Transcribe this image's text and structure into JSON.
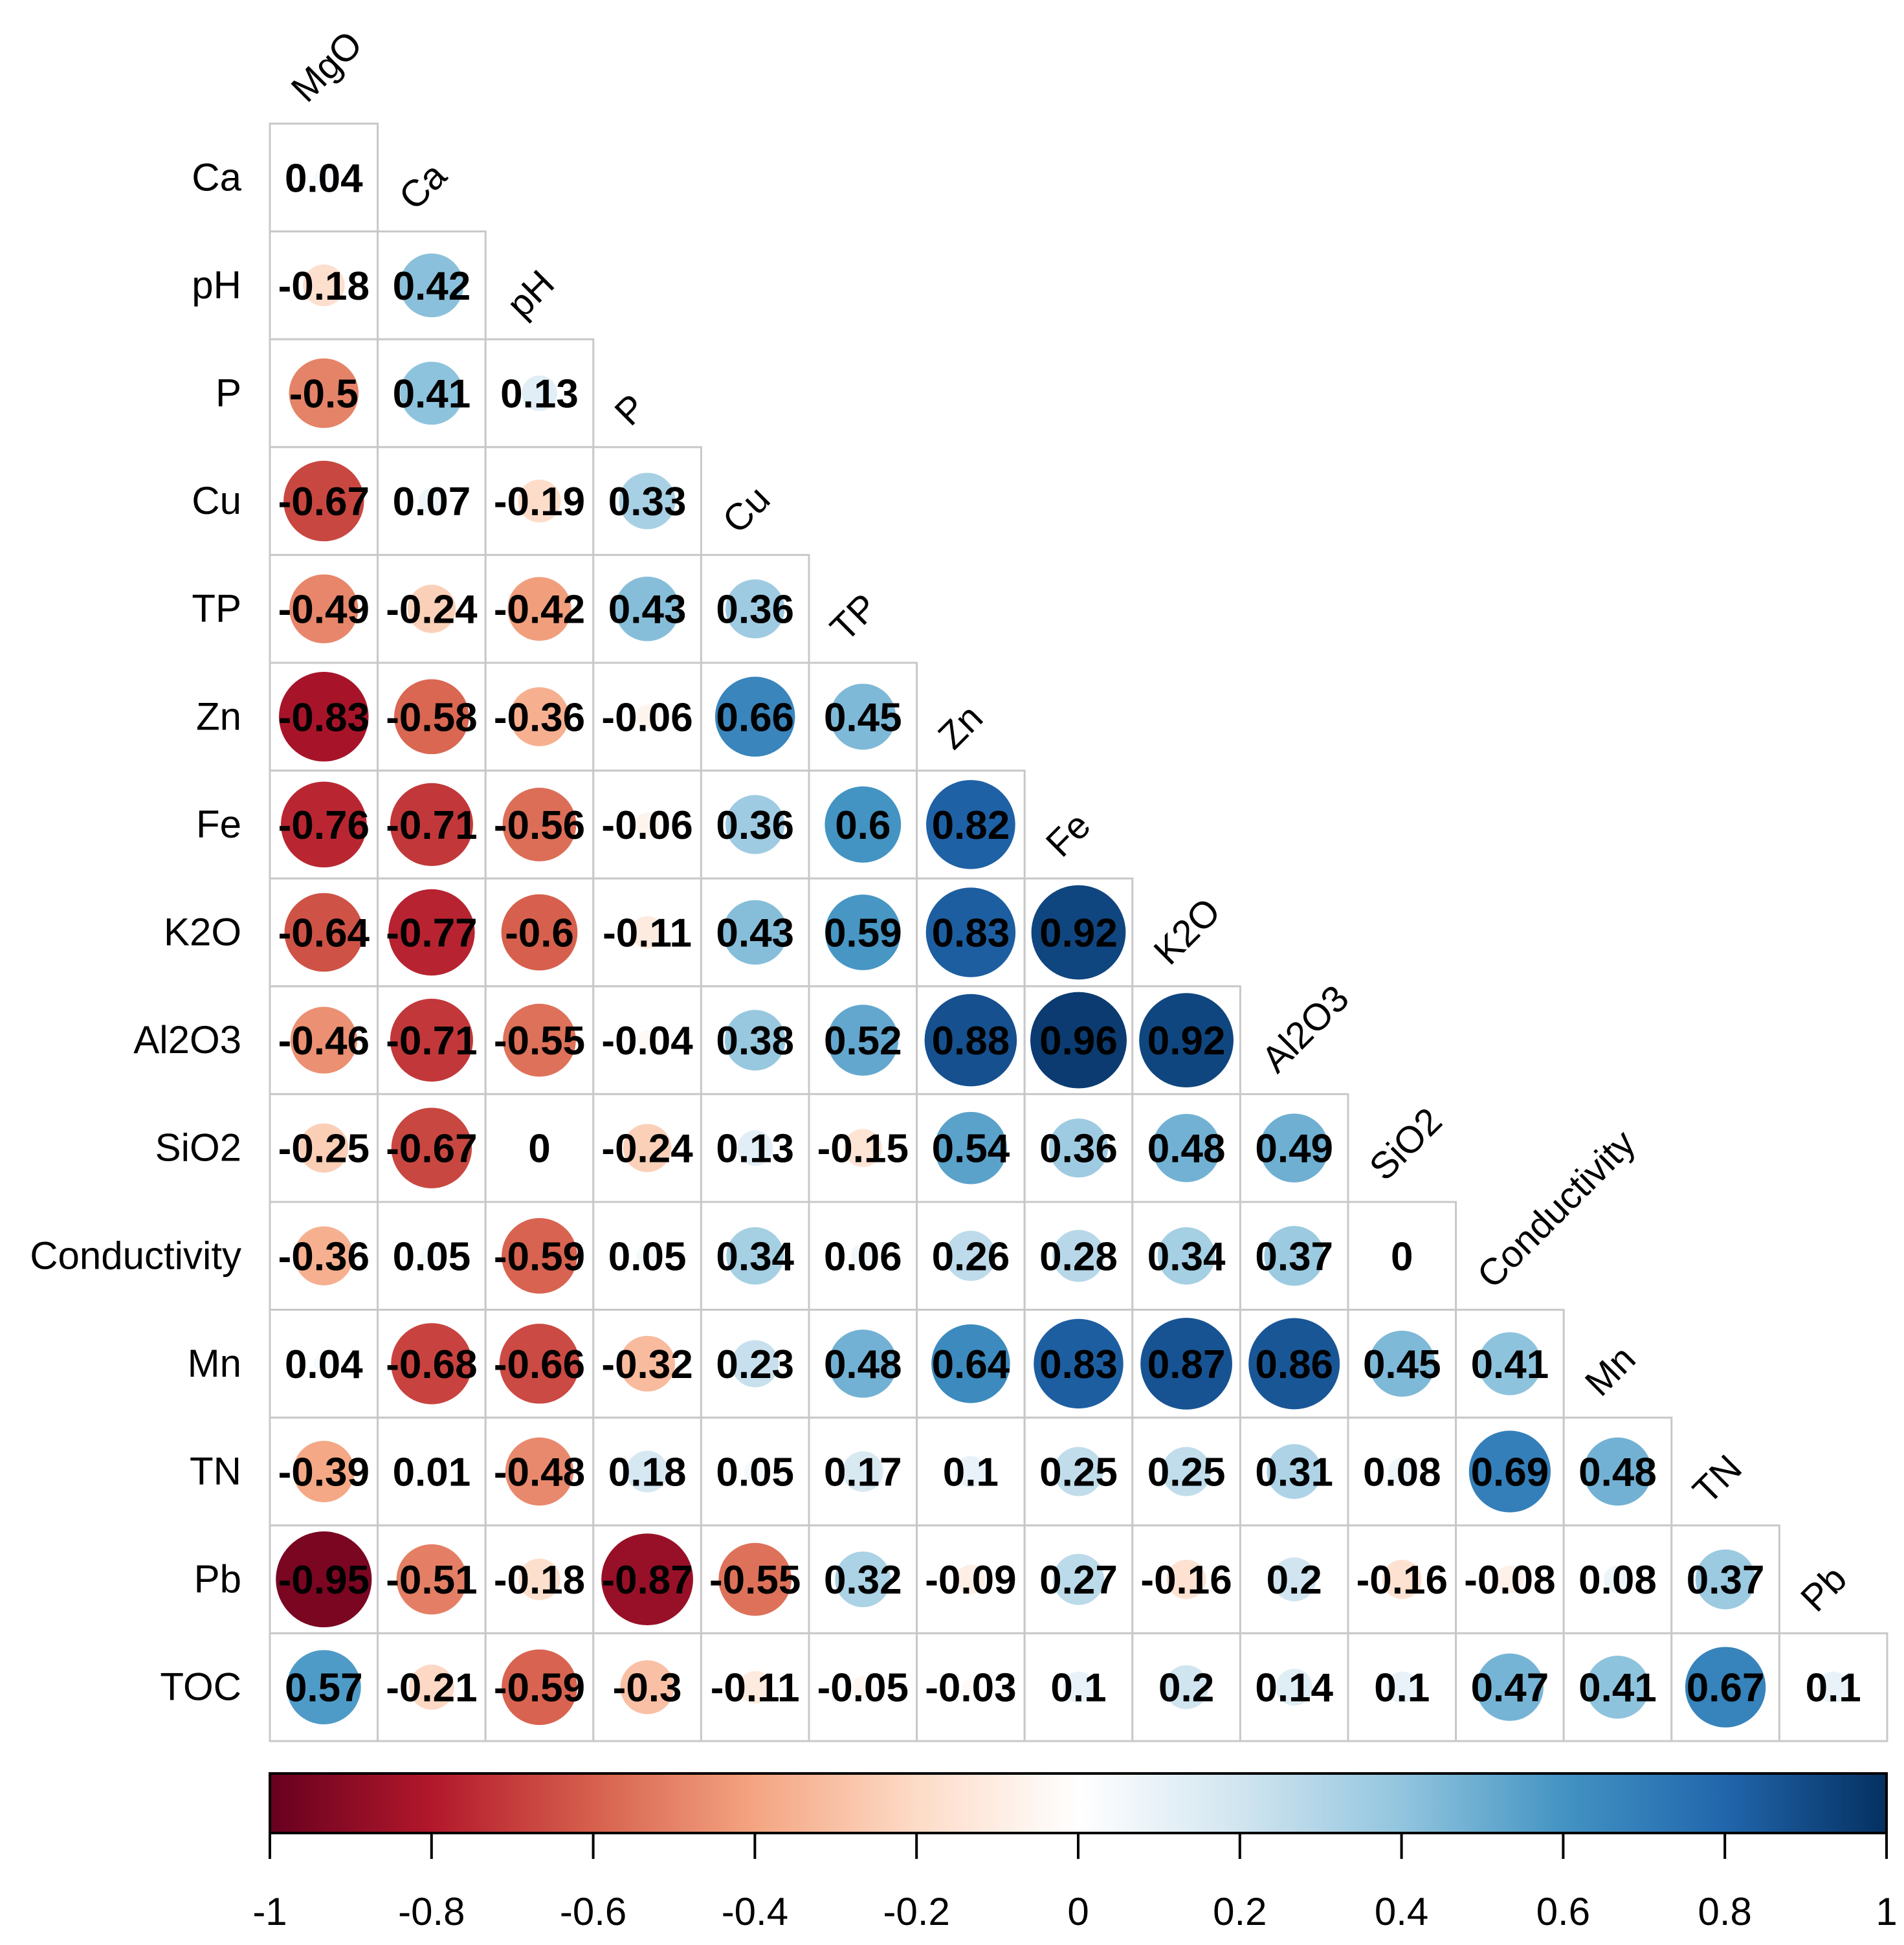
{
  "chart_data": {
    "type": "heatmap",
    "subtype": "correlation-matrix-lower-triangle",
    "mark": "circle",
    "variables": [
      "MgO",
      "Ca",
      "pH",
      "P",
      "Cu",
      "TP",
      "Zn",
      "Fe",
      "K2O",
      "Al2O3",
      "SiO2",
      "Conductivity",
      "Mn",
      "TN",
      "Pb",
      "TOC"
    ],
    "column_labels": [
      "MgO",
      "Ca",
      "pH",
      "P",
      "Cu",
      "TP",
      "Zn",
      "Fe",
      "K2O",
      "Al2O3",
      "SiO2",
      "Conductivity",
      "Mn",
      "TN",
      "Pb"
    ],
    "row_labels": [
      "Ca",
      "pH",
      "P",
      "Cu",
      "TP",
      "Zn",
      "Fe",
      "K2O",
      "Al2O3",
      "SiO2",
      "Conductivity",
      "Mn",
      "TN",
      "Pb",
      "TOC"
    ],
    "rows": [
      {
        "label": "Ca",
        "values": [
          "0.04"
        ]
      },
      {
        "label": "pH",
        "values": [
          "-0.18",
          "0.42"
        ]
      },
      {
        "label": "P",
        "values": [
          "-0.5",
          "0.41",
          "0.13"
        ]
      },
      {
        "label": "Cu",
        "values": [
          "-0.67",
          "0.07",
          "-0.19",
          "0.33"
        ]
      },
      {
        "label": "TP",
        "values": [
          "-0.49",
          "-0.24",
          "-0.42",
          "0.43",
          "0.36"
        ]
      },
      {
        "label": "Zn",
        "values": [
          "-0.83",
          "-0.58",
          "-0.36",
          "-0.06",
          "0.66",
          "0.45"
        ]
      },
      {
        "label": "Fe",
        "values": [
          "-0.76",
          "-0.71",
          "-0.56",
          "-0.06",
          "0.36",
          "0.6",
          "0.82"
        ]
      },
      {
        "label": "K2O",
        "values": [
          "-0.64",
          "-0.77",
          "-0.6",
          "-0.11",
          "0.43",
          "0.59",
          "0.83",
          "0.92"
        ]
      },
      {
        "label": "Al2O3",
        "values": [
          "-0.46",
          "-0.71",
          "-0.55",
          "-0.04",
          "0.38",
          "0.52",
          "0.88",
          "0.96",
          "0.92"
        ]
      },
      {
        "label": "SiO2",
        "values": [
          "-0.25",
          "-0.67",
          "0",
          "-0.24",
          "0.13",
          "-0.15",
          "0.54",
          "0.36",
          "0.48",
          "0.49"
        ]
      },
      {
        "label": "Conductivity",
        "values": [
          "-0.36",
          "0.05",
          "-0.59",
          "0.05",
          "0.34",
          "0.06",
          "0.26",
          "0.28",
          "0.34",
          "0.37",
          "0"
        ]
      },
      {
        "label": "Mn",
        "values": [
          "0.04",
          "-0.68",
          "-0.66",
          "-0.32",
          "0.23",
          "0.48",
          "0.64",
          "0.83",
          "0.87",
          "0.86",
          "0.45",
          "0.41"
        ]
      },
      {
        "label": "TN",
        "values": [
          "-0.39",
          "0.01",
          "-0.48",
          "0.18",
          "0.05",
          "0.17",
          "0.1",
          "0.25",
          "0.25",
          "0.31",
          "0.08",
          "0.69",
          "0.48"
        ]
      },
      {
        "label": "Pb",
        "values": [
          "-0.95",
          "-0.51",
          "-0.18",
          "-0.87",
          "-0.55",
          "0.32",
          "-0.09",
          "0.27",
          "-0.16",
          "0.2",
          "-0.16",
          "-0.08",
          "0.08",
          "0.37"
        ]
      },
      {
        "label": "TOC",
        "values": [
          "0.57",
          "-0.21",
          "-0.59",
          "-0.3",
          "-0.11",
          "-0.05",
          "-0.03",
          "0.1",
          "0.2",
          "0.14",
          "0.1",
          "0.47",
          "0.41",
          "0.67",
          "0.1"
        ]
      }
    ],
    "colorbar": {
      "range": [
        -1,
        1
      ],
      "orientation": "horizontal",
      "placement": "bottom",
      "tick_labels": [
        "-1",
        "-0.8",
        "-0.6",
        "-0.4",
        "-0.2",
        "0",
        "0.2",
        "0.4",
        "0.6",
        "0.8",
        "1"
      ],
      "colors": [
        "#67001f",
        "#b2182b",
        "#d6604d",
        "#f4a582",
        "#fddbc7",
        "#ffffff",
        "#d1e5f0",
        "#92c5de",
        "#4393c3",
        "#2166ac",
        "#053061"
      ]
    },
    "grid_color": "#c8c8c8",
    "title": "",
    "xlabel": "",
    "ylabel": ""
  }
}
